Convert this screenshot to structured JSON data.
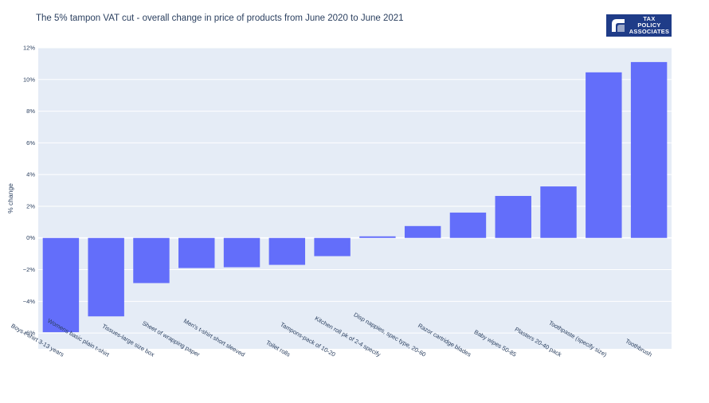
{
  "header": {
    "title": "The 5% tampon VAT cut - overall change in price of products from June 2020 to June 2021"
  },
  "logo": {
    "lines": [
      "TAX",
      "POLICY",
      "ASSOCIATES"
    ],
    "background": "#1f3c88"
  },
  "colors": {
    "bar": "#636efa",
    "plot_bg": "#e5ecf6",
    "grid": "#ffffff",
    "text": "#2a3f5f"
  },
  "chart_data": {
    "type": "bar",
    "title": "The 5% tampon VAT cut - overall change in price of products from June 2020 to June 2021",
    "xlabel": "",
    "ylabel": "% change",
    "ylim": [
      -7,
      12
    ],
    "yticks": [
      -6,
      -4,
      -2,
      0,
      2,
      4,
      6,
      8,
      10,
      12
    ],
    "ytick_labels": [
      "−6%",
      "−4%",
      "−2%",
      "0%",
      "2%",
      "4%",
      "6%",
      "8%",
      "10%",
      "12%"
    ],
    "grid": true,
    "categories": [
      "Boys t-shirt 3-13 years",
      "Womens basic plain t-shirt",
      "Tissues-large size box",
      "Sheet of wrapping paper",
      "Men's t-shirt short sleeved",
      "Toilet rolls",
      "Tampons-pack of 10-20",
      "Kitchen roll pk of 2-4 specify",
      "Disp nappies, spec type, 20-60",
      "Razor cartridge blades",
      "Baby wipes 50-85",
      "Plasters 20-40 pack",
      "Toothpaste (specify size)",
      "Toothbrush"
    ],
    "values": [
      -5.95,
      -4.95,
      -2.85,
      -1.9,
      -1.85,
      -1.7,
      -1.15,
      0.1,
      0.75,
      1.6,
      2.65,
      3.25,
      10.45,
      11.1
    ]
  }
}
